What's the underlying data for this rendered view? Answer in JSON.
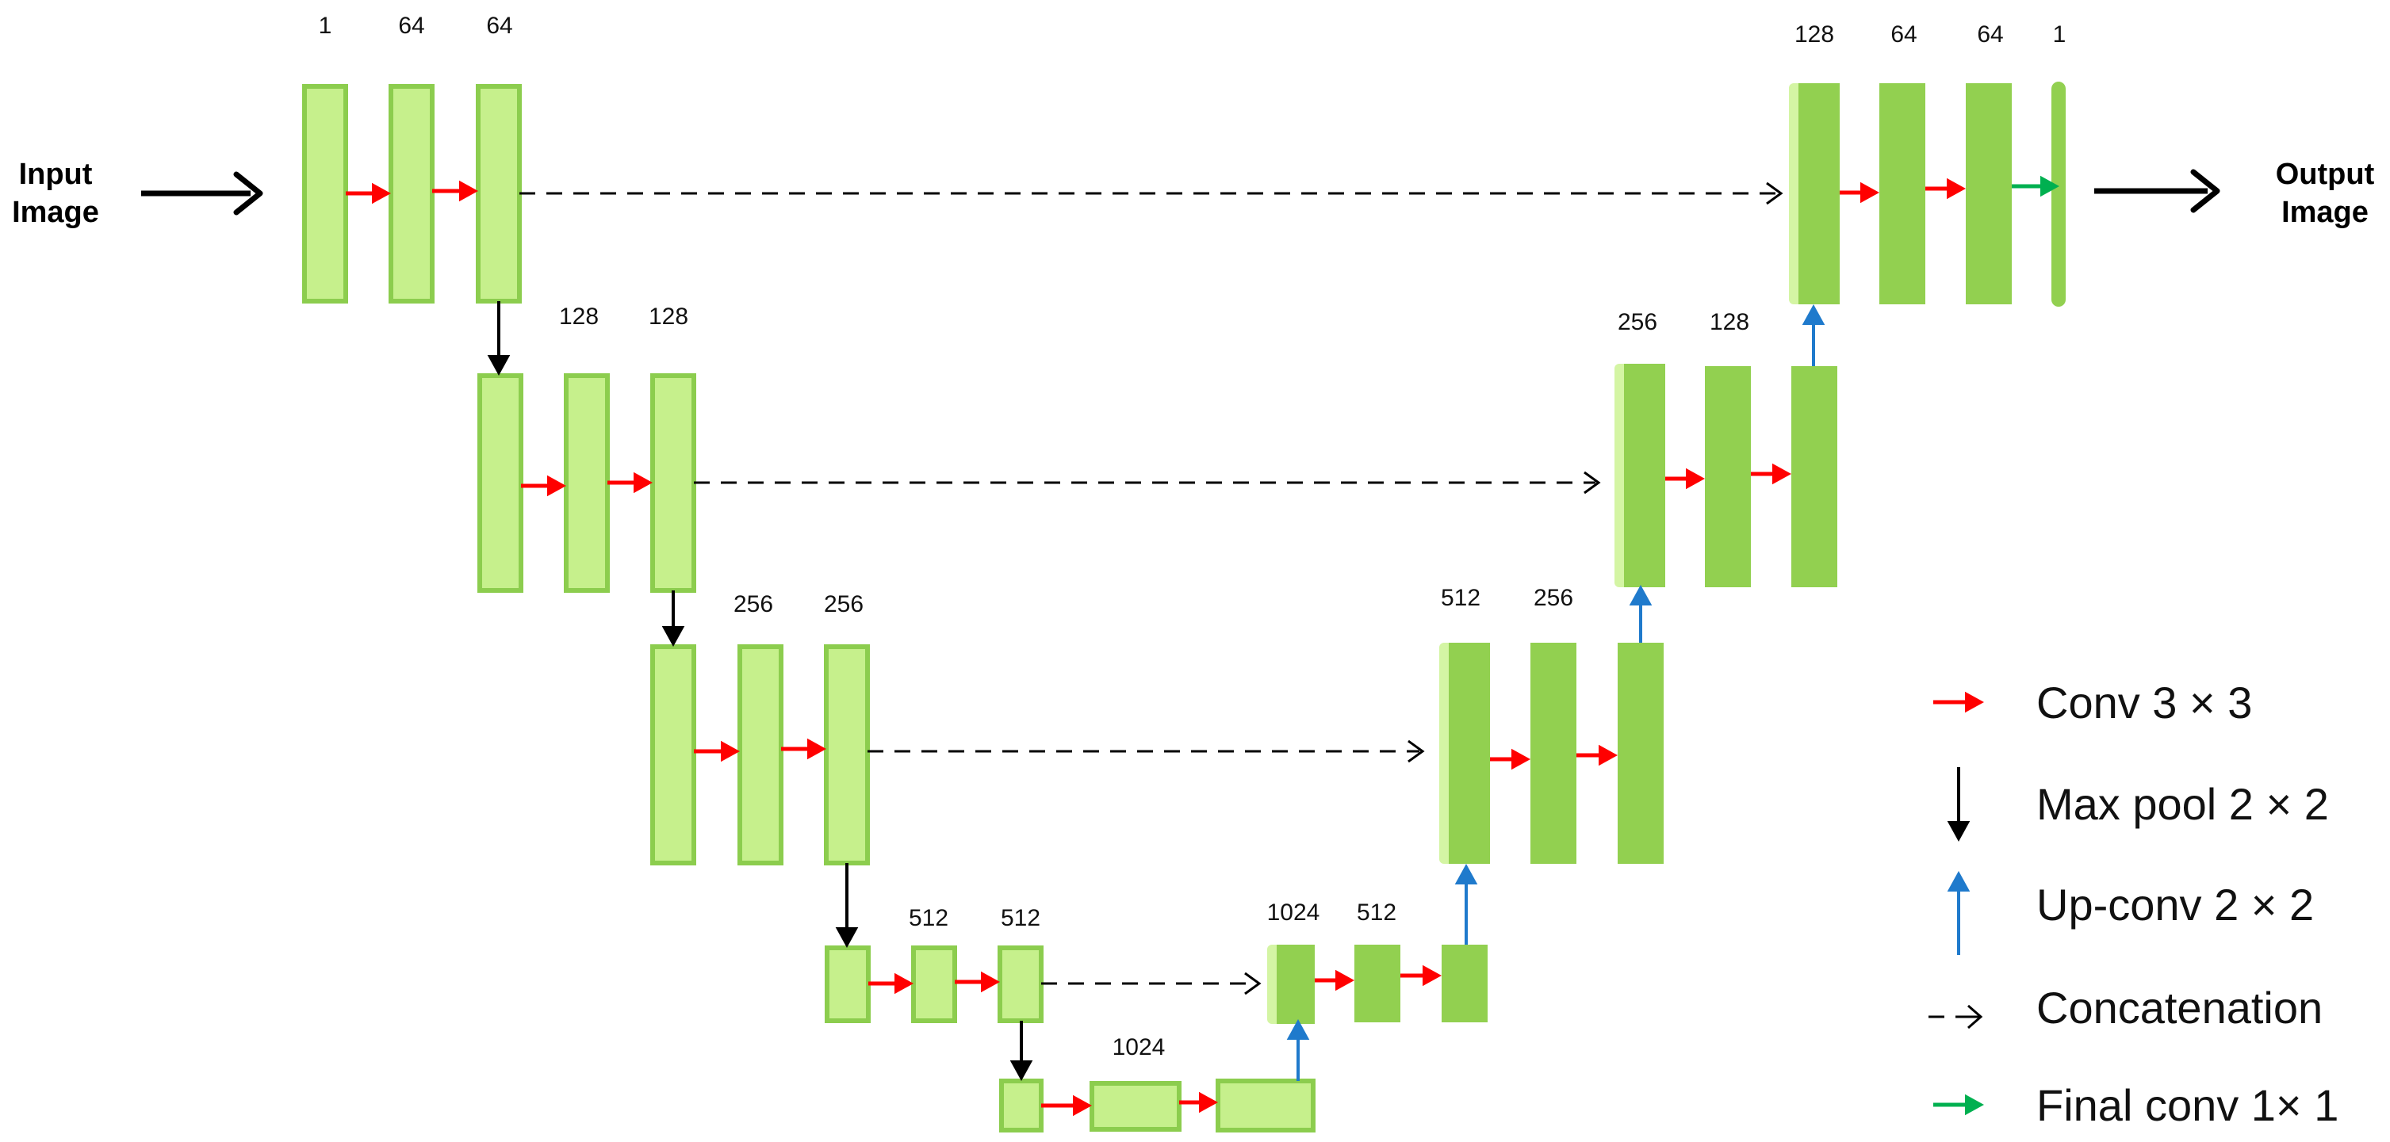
{
  "io_labels": {
    "input": [
      "Input",
      "Image"
    ],
    "output": [
      "Output",
      "Image"
    ]
  },
  "channel_labels": [
    "1",
    "64",
    "64",
    "128",
    "128",
    "256",
    "256",
    "512",
    "512",
    "1024",
    "1024",
    "512",
    "512",
    "256",
    "256",
    "128",
    "128",
    "64",
    "64",
    "1"
  ],
  "legend": [
    {
      "label": "Conv 3 × 3",
      "arrow": "conv",
      "color": "#ff0000"
    },
    {
      "label": "Max pool 2 × 2",
      "arrow": "pool",
      "color": "#000000"
    },
    {
      "label": "Up-conv 2 × 2",
      "arrow": "up",
      "color": "#1f7acc"
    },
    {
      "label": "Concatenation",
      "arrow": "concat",
      "color": "#000000"
    },
    {
      "label": "Final conv 1× 1",
      "arrow": "final",
      "color": "#00b050"
    }
  ],
  "colors": {
    "encoder_fill": "#c6f08c",
    "encoder_stroke": "#8ccd4e",
    "decoder_fill": "#92d050",
    "concat_fill": "#d4f5a4",
    "conv_arrow": "#ff0000",
    "pool_arrow": "#000000",
    "up_arrow": "#1f7acc",
    "final_arrow": "#00b050"
  }
}
